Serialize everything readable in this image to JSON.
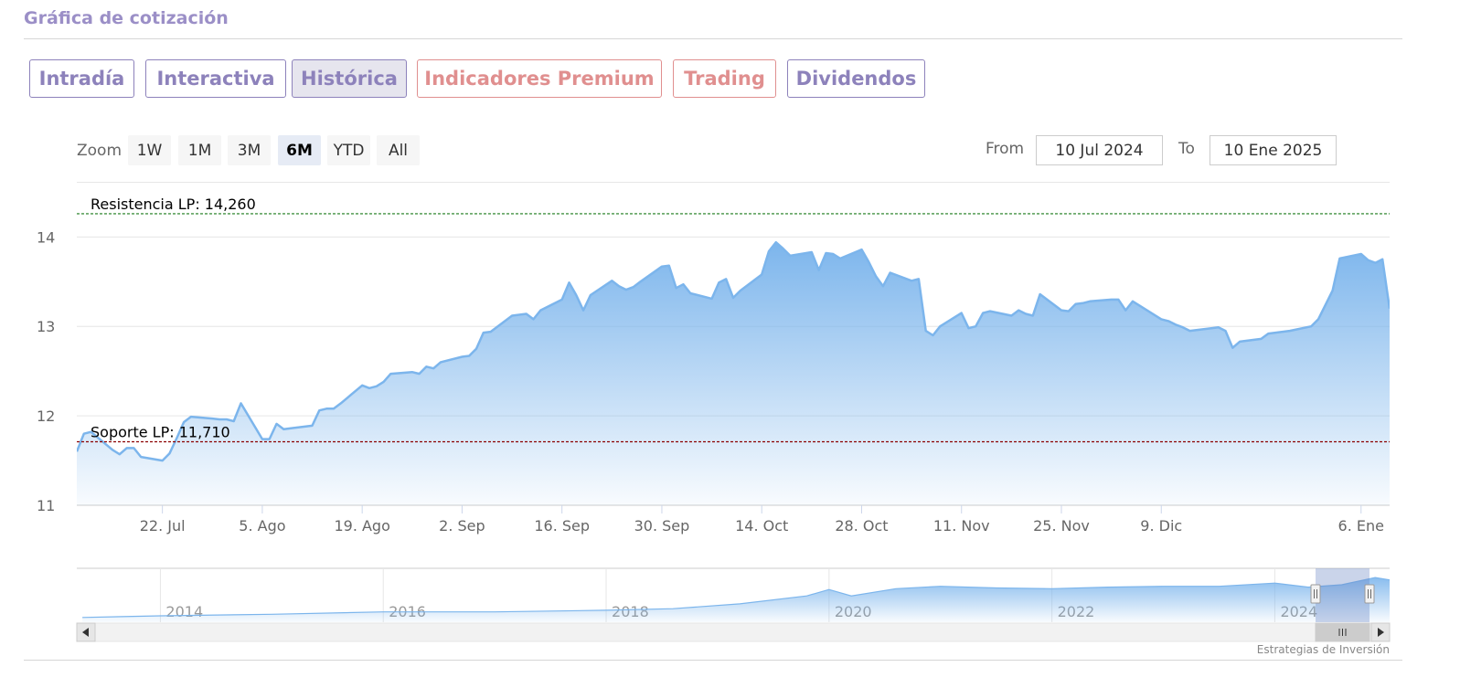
{
  "header": {
    "title": "Gráfica de cotización"
  },
  "tabs": [
    {
      "label": "Intradía",
      "active": false,
      "premium": false
    },
    {
      "label": "Interactiva",
      "active": false,
      "premium": false
    },
    {
      "label": "Histórica",
      "active": true,
      "premium": false
    },
    {
      "label": "Indicadores Premium",
      "active": false,
      "premium": true
    },
    {
      "label": "Trading",
      "active": false,
      "premium": true
    },
    {
      "label": "Dividendos",
      "active": false,
      "premium": false
    }
  ],
  "zoom": {
    "label": "Zoom",
    "buttons": [
      "1W",
      "1M",
      "3M",
      "6M",
      "YTD",
      "All"
    ],
    "active": "6M"
  },
  "range": {
    "from_label": "From",
    "from_value": "10 Jul 2024",
    "to_label": "To",
    "to_value": "10 Ene 2025"
  },
  "colors": {
    "series": "#7cb5ec",
    "resistance": "#1a7a1a",
    "support": "#8b0000",
    "accent": "#8d82bb",
    "premium": "#e08f8f"
  },
  "chart_data": {
    "type": "area",
    "title": "",
    "xlabel": "",
    "ylabel": "",
    "ylim": [
      11,
      14.3
    ],
    "xlim": [
      "2024-07-10",
      "2025-01-10"
    ],
    "y_ticks": [
      "11",
      "12",
      "13",
      "14"
    ],
    "x_ticks": [
      {
        "date": "2024-07-22",
        "label": "22. Jul"
      },
      {
        "date": "2024-08-05",
        "label": "5. Ago"
      },
      {
        "date": "2024-08-19",
        "label": "19. Ago"
      },
      {
        "date": "2024-09-02",
        "label": "2. Sep"
      },
      {
        "date": "2024-09-16",
        "label": "16. Sep"
      },
      {
        "date": "2024-09-30",
        "label": "30. Sep"
      },
      {
        "date": "2024-10-14",
        "label": "14. Oct"
      },
      {
        "date": "2024-10-28",
        "label": "28. Oct"
      },
      {
        "date": "2024-11-11",
        "label": "11. Nov"
      },
      {
        "date": "2024-11-25",
        "label": "25. Nov"
      },
      {
        "date": "2024-12-09",
        "label": "9. Dic"
      },
      {
        "date": "2025-01-06",
        "label": "6. Ene"
      }
    ],
    "plot_lines": [
      {
        "label": "Resistencia LP: 14,260",
        "value": 14.26,
        "style": "dashed",
        "color": "#1a7a1a"
      },
      {
        "label": "Soporte LP: 11,710",
        "value": 11.71,
        "style": "dashed",
        "color": "#8b0000"
      }
    ],
    "series": [
      {
        "x": [
          "2024-07-10",
          "2024-07-11",
          "2024-07-12",
          "2024-07-15",
          "2024-07-16",
          "2024-07-17",
          "2024-07-18",
          "2024-07-19",
          "2024-07-22",
          "2024-07-23",
          "2024-07-24",
          "2024-07-25",
          "2024-07-26",
          "2024-07-29",
          "2024-07-30",
          "2024-07-31",
          "2024-08-01",
          "2024-08-02",
          "2024-08-05",
          "2024-08-06",
          "2024-08-07",
          "2024-08-08",
          "2024-08-09",
          "2024-08-12",
          "2024-08-13",
          "2024-08-14",
          "2024-08-15",
          "2024-08-16",
          "2024-08-19",
          "2024-08-20",
          "2024-08-21",
          "2024-08-22",
          "2024-08-23",
          "2024-08-26",
          "2024-08-27",
          "2024-08-28",
          "2024-08-29",
          "2024-08-30",
          "2024-09-02",
          "2024-09-03",
          "2024-09-04",
          "2024-09-05",
          "2024-09-06",
          "2024-09-09",
          "2024-09-10",
          "2024-09-11",
          "2024-09-12",
          "2024-09-13",
          "2024-09-16",
          "2024-09-17",
          "2024-09-18",
          "2024-09-19",
          "2024-09-20",
          "2024-09-23",
          "2024-09-24",
          "2024-09-25",
          "2024-09-26",
          "2024-09-27",
          "2024-09-30",
          "2024-10-01",
          "2024-10-02",
          "2024-10-03",
          "2024-10-04",
          "2024-10-07",
          "2024-10-08",
          "2024-10-09",
          "2024-10-10",
          "2024-10-11",
          "2024-10-14",
          "2024-10-15",
          "2024-10-16",
          "2024-10-17",
          "2024-10-18",
          "2024-10-21",
          "2024-10-22",
          "2024-10-23",
          "2024-10-24",
          "2024-10-25",
          "2024-10-28",
          "2024-10-29",
          "2024-10-30",
          "2024-10-31",
          "2024-11-01",
          "2024-11-04",
          "2024-11-05",
          "2024-11-06",
          "2024-11-07",
          "2024-11-08",
          "2024-11-11",
          "2024-11-12",
          "2024-11-13",
          "2024-11-14",
          "2024-11-15",
          "2024-11-18",
          "2024-11-19",
          "2024-11-20",
          "2024-11-21",
          "2024-11-22",
          "2024-11-25",
          "2024-11-26",
          "2024-11-27",
          "2024-11-28",
          "2024-11-29",
          "2024-12-02",
          "2024-12-03",
          "2024-12-04",
          "2024-12-05",
          "2024-12-06",
          "2024-12-09",
          "2024-12-10",
          "2024-12-11",
          "2024-12-12",
          "2024-12-13",
          "2024-12-16",
          "2024-12-17",
          "2024-12-18",
          "2024-12-19",
          "2024-12-20",
          "2024-12-23",
          "2024-12-24",
          "2024-12-27",
          "2024-12-30",
          "2024-12-31",
          "2025-01-02",
          "2025-01-03",
          "2025-01-06",
          "2025-01-07",
          "2025-01-08",
          "2025-01-09",
          "2025-01-10"
        ],
        "values": [
          11.6,
          11.8,
          11.82,
          11.62,
          11.57,
          11.64,
          11.64,
          11.54,
          11.5,
          11.58,
          11.75,
          11.93,
          11.99,
          11.97,
          11.96,
          11.96,
          11.94,
          12.14,
          11.74,
          11.74,
          11.91,
          11.85,
          11.86,
          11.89,
          12.06,
          12.08,
          12.08,
          12.14,
          12.34,
          12.31,
          12.33,
          12.38,
          12.47,
          12.49,
          12.47,
          12.55,
          12.53,
          12.6,
          12.66,
          12.67,
          12.75,
          12.93,
          12.94,
          13.12,
          13.13,
          13.14,
          13.08,
          13.18,
          13.3,
          13.49,
          13.35,
          13.18,
          13.35,
          13.51,
          13.45,
          13.41,
          13.44,
          13.5,
          13.67,
          13.68,
          13.43,
          13.47,
          13.37,
          13.31,
          13.49,
          13.53,
          13.32,
          13.4,
          13.58,
          13.84,
          13.94,
          13.87,
          13.79,
          13.83,
          13.63,
          13.82,
          13.81,
          13.76,
          13.86,
          13.72,
          13.56,
          13.45,
          13.6,
          13.51,
          13.53,
          12.95,
          12.9,
          13.0,
          13.15,
          12.98,
          13.0,
          13.15,
          13.17,
          13.12,
          13.18,
          13.14,
          13.12,
          13.36,
          13.18,
          13.17,
          13.25,
          13.26,
          13.28,
          13.3,
          13.3,
          13.18,
          13.28,
          13.23,
          13.08,
          13.06,
          13.02,
          12.99,
          12.95,
          12.98,
          12.99,
          12.95,
          12.76,
          12.83,
          12.86,
          12.92,
          12.95,
          13.0,
          13.08,
          13.4,
          13.76,
          13.81,
          13.74,
          13.71,
          13.75,
          13.2
        ]
      }
    ],
    "navigator": {
      "x_labels": [
        "2014",
        "2016",
        "2018",
        "2020",
        "2022",
        "2024"
      ]
    }
  },
  "credit": "Estrategias de Inversión"
}
